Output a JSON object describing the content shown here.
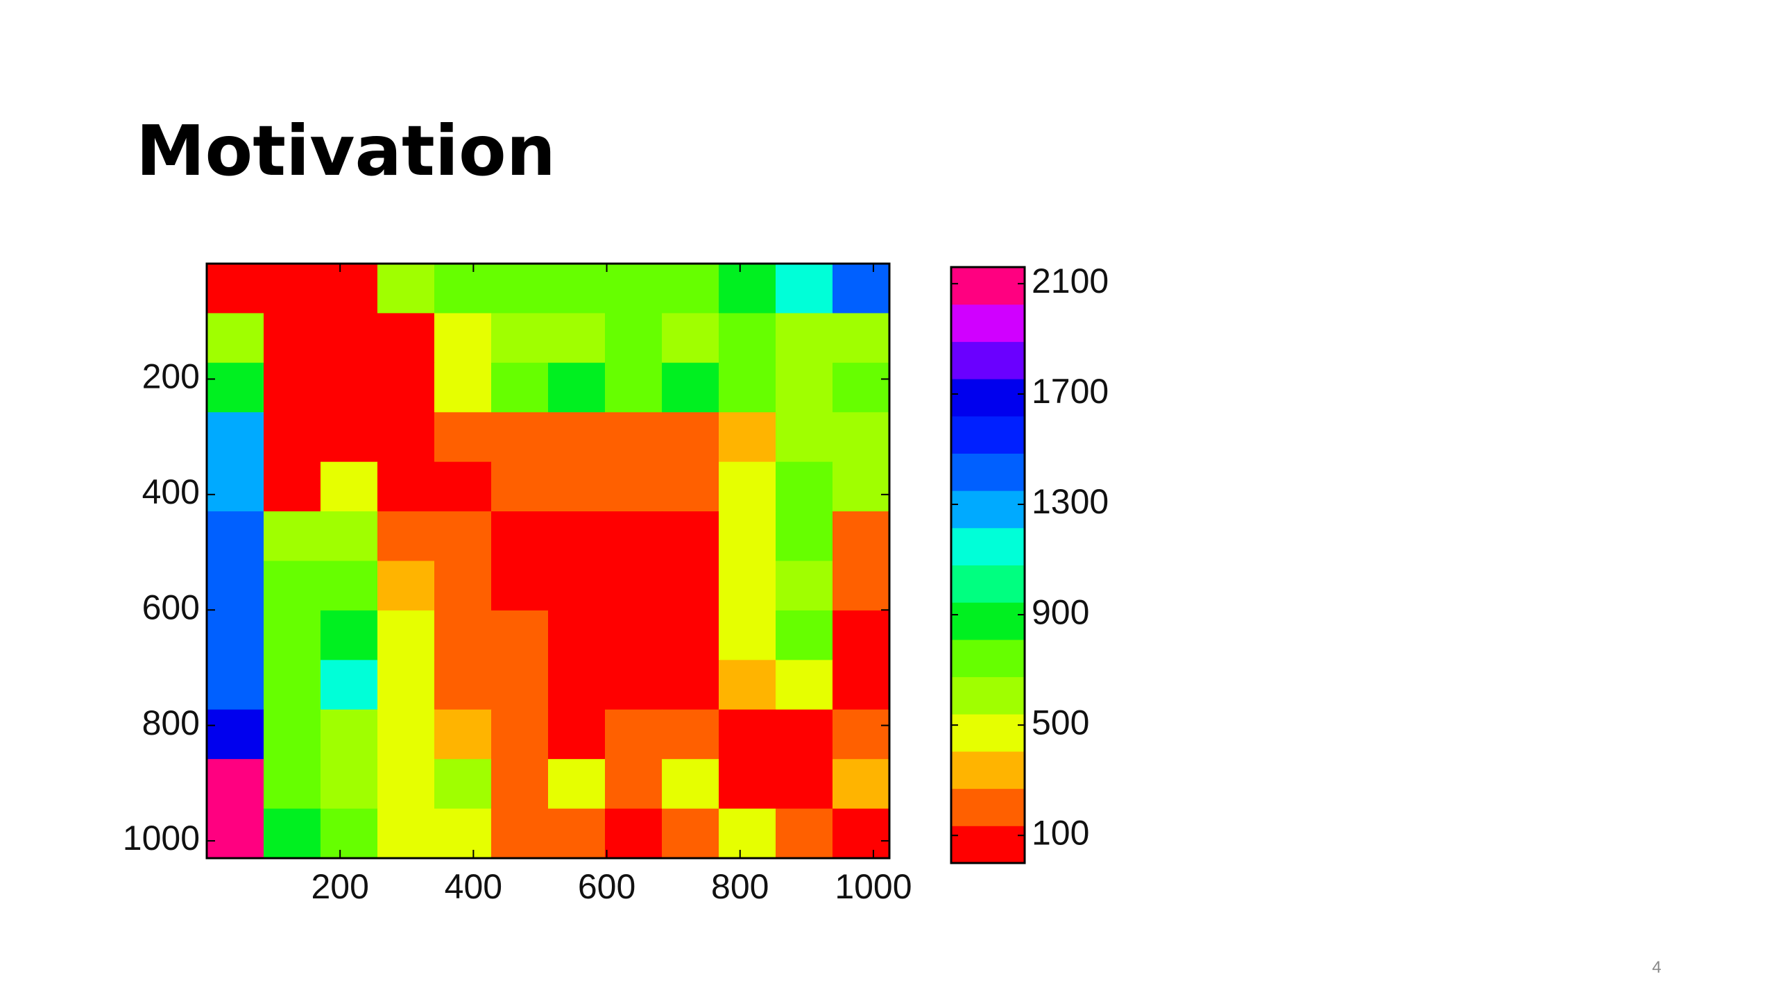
{
  "slide_title": "Motivation",
  "page_number": "4",
  "chart_data": {
    "type": "heatmap",
    "xlim": [
      0,
      1024
    ],
    "ylim": [
      0,
      1030
    ],
    "y_reversed": true,
    "xticks": [
      200,
      400,
      600,
      800,
      1000
    ],
    "yticks": [
      200,
      400,
      600,
      800,
      1000
    ],
    "clim": [
      0,
      2160
    ],
    "cticks": [
      100,
      500,
      900,
      1300,
      1700,
      2100
    ],
    "colors": [
      "#ff0000",
      "#ff6000",
      "#ffb400",
      "#e6ff00",
      "#a0ff00",
      "#66ff00",
      "#00f020",
      "#00ff80",
      "#00ffd8",
      "#00aaff",
      "#0060ff",
      "#0020ff",
      "#0000ee",
      "#6a00ff",
      "#d000ff",
      "#ff0080"
    ],
    "z": [
      [
        50,
        50,
        50,
        600,
        740,
        740,
        740,
        740,
        740,
        880,
        1150,
        1420
      ],
      [
        600,
        50,
        50,
        50,
        470,
        600,
        600,
        740,
        600,
        740,
        600,
        600
      ],
      [
        880,
        50,
        50,
        50,
        470,
        740,
        880,
        740,
        880,
        740,
        600,
        740
      ],
      [
        1280,
        50,
        50,
        50,
        200,
        200,
        200,
        200,
        200,
        330,
        600,
        600
      ],
      [
        1280,
        50,
        470,
        50,
        50,
        200,
        200,
        200,
        200,
        470,
        740,
        600
      ],
      [
        1420,
        600,
        600,
        200,
        200,
        50,
        50,
        50,
        50,
        470,
        740,
        200
      ],
      [
        1420,
        740,
        740,
        330,
        200,
        50,
        50,
        50,
        50,
        470,
        600,
        200
      ],
      [
        1420,
        740,
        880,
        470,
        200,
        200,
        50,
        50,
        50,
        470,
        740,
        50
      ],
      [
        1420,
        740,
        1150,
        470,
        200,
        200,
        50,
        50,
        50,
        330,
        470,
        50
      ],
      [
        1700,
        740,
        600,
        470,
        330,
        200,
        50,
        200,
        200,
        50,
        50,
        200
      ],
      [
        2100,
        740,
        600,
        470,
        600,
        200,
        470,
        200,
        470,
        50,
        50,
        330
      ],
      [
        2100,
        880,
        740,
        470,
        470,
        200,
        200,
        50,
        200,
        470,
        200,
        50
      ]
    ]
  }
}
